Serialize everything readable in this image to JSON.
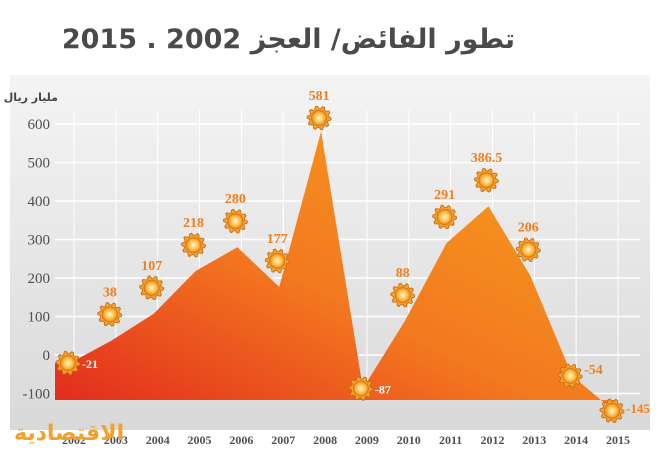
{
  "chart_data": {
    "type": "area",
    "title": "تطور الفائض/ العجز 2002 . 2015",
    "ylabel": "مليار ريال",
    "x": [
      "2002",
      "2003",
      "2004",
      "2005",
      "2006",
      "2007",
      "2008",
      "2009",
      "2010",
      "2011",
      "2012",
      "2013",
      "2014",
      "2015"
    ],
    "series": [
      {
        "values": [
          -21,
          38,
          107,
          218,
          280,
          177,
          581,
          -87,
          88,
          291,
          386.5,
          206,
          -54,
          -145
        ]
      }
    ],
    "data_labels": [
      "-21",
      "38",
      "107",
      "218",
      "280",
      "177",
      "581",
      "-87",
      "88",
      "291",
      "386.5",
      "206",
      "-54",
      "-145"
    ],
    "yticks": [
      "600",
      "500",
      "400",
      "300",
      "200",
      "100",
      "0",
      "-100"
    ],
    "ylim": [
      -120,
      640
    ],
    "grid": true
  },
  "branding": {
    "logo_text": "الاقتصادية"
  },
  "colors": {
    "area_top": "#f58a1f",
    "area_bottom": "#e0261e",
    "label": "#f07e1e",
    "grid": "#ffffff",
    "plot_bg": "#e3e3e3"
  }
}
